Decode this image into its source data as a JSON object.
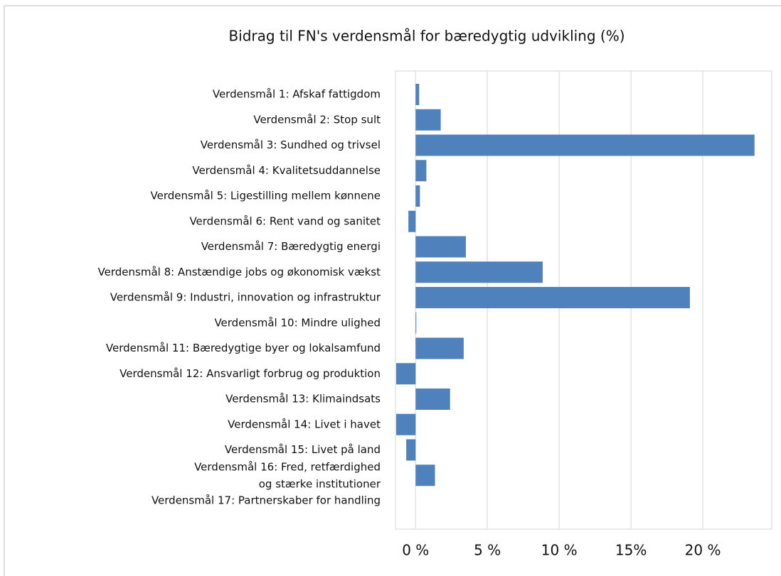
{
  "chart_data": {
    "type": "barh",
    "title": "Bidrag til FN's verdensmål for bæredygtig udvikling (%)",
    "categories": [
      "Verdensmål 1: Afskaf fattigdom",
      "Verdensmål 2: Stop sult",
      "Verdensmål 3: Sundhed og trivsel",
      "Verdensmål 4: Kvalitetsuddannelse",
      "Verdensmål 5: Ligestilling mellem kønnene",
      "Verdensmål 6: Rent vand og sanitet",
      "Verdensmål 7: Bæredygtig energi",
      "Verdensmål 8: Anstændige jobs og økonomisk vækst",
      "Verdensmål 9: Industri, innovation og infrastruktur",
      "Verdensmål 10: Mindre ulighed",
      "Verdensmål 11: Bæredygtige byer og lokalsamfund",
      "Verdensmål 12: Ansvarligt forbrug og produktion",
      "Verdensmål 13: Klimaindsats",
      "Verdensmål 14: Livet i havet",
      "Verdensmål 15: Livet på land",
      "Verdensmål 16: Fred, retfærdighed\nog stærke institutioner",
      "Verdensmål 17: Partnerskaber for handling"
    ],
    "values": [
      0.25,
      1.75,
      23.6,
      0.75,
      0.3,
      -0.5,
      3.5,
      8.85,
      19.1,
      0.05,
      3.35,
      -1.35,
      2.4,
      -1.35,
      -0.65,
      1.35,
      null
    ],
    "color": "#4f81bd",
    "xlim": [
      -1.4,
      24.8
    ],
    "xticks": [
      {
        "value": 0,
        "label": "0 %"
      },
      {
        "value": 5,
        "label": "5 %"
      },
      {
        "value": 10,
        "label": "10 %"
      },
      {
        "value": 15,
        "label": "15%"
      },
      {
        "value": 20,
        "label": "20 %"
      }
    ],
    "grid": true
  }
}
